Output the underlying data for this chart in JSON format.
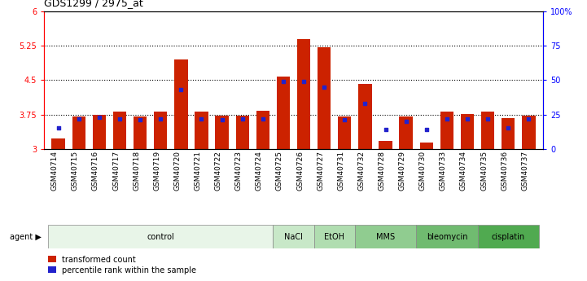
{
  "title": "GDS1299 / 2975_at",
  "samples": [
    "GSM40714",
    "GSM40715",
    "GSM40716",
    "GSM40717",
    "GSM40718",
    "GSM40719",
    "GSM40720",
    "GSM40721",
    "GSM40722",
    "GSM40723",
    "GSM40724",
    "GSM40725",
    "GSM40726",
    "GSM40727",
    "GSM40731",
    "GSM40732",
    "GSM40728",
    "GSM40729",
    "GSM40730",
    "GSM40733",
    "GSM40734",
    "GSM40735",
    "GSM40736",
    "GSM40737"
  ],
  "bar_heights": [
    3.23,
    3.7,
    3.75,
    3.82,
    3.7,
    3.82,
    4.95,
    3.82,
    3.72,
    3.72,
    3.83,
    4.57,
    5.4,
    5.22,
    3.7,
    4.42,
    3.18,
    3.7,
    3.14,
    3.82,
    3.76,
    3.82,
    3.68,
    3.72
  ],
  "percentile_values": [
    15,
    22,
    23,
    22,
    21,
    22,
    43,
    22,
    21,
    22,
    22,
    49,
    49,
    45,
    21,
    33,
    14,
    20,
    14,
    22,
    22,
    22,
    15,
    22
  ],
  "agents": [
    {
      "label": "control",
      "start": 0,
      "end": 10,
      "color": "#e8f5e8"
    },
    {
      "label": "NaCl",
      "start": 11,
      "end": 12,
      "color": "#c8e8c8"
    },
    {
      "label": "EtOH",
      "start": 13,
      "end": 14,
      "color": "#b0ddb0"
    },
    {
      "label": "MMS",
      "start": 15,
      "end": 17,
      "color": "#90cc90"
    },
    {
      "label": "bleomycin",
      "start": 18,
      "end": 20,
      "color": "#70bb70"
    },
    {
      "label": "cisplatin",
      "start": 21,
      "end": 23,
      "color": "#50aa50"
    }
  ],
  "ylim_left": [
    3.0,
    6.0
  ],
  "ylim_right": [
    0,
    100
  ],
  "yticks_left": [
    3.0,
    3.75,
    4.5,
    5.25,
    6.0
  ],
  "ytick_labels_left": [
    "3",
    "3.75",
    "4.5",
    "5.25",
    "6"
  ],
  "yticks_right": [
    0,
    25,
    50,
    75,
    100
  ],
  "ytick_labels_right": [
    "0",
    "25",
    "50",
    "75",
    "100%"
  ],
  "hlines": [
    3.75,
    4.5,
    5.25
  ],
  "bar_color": "#cc2200",
  "dot_color": "#2222cc",
  "bar_width": 0.65,
  "legend_labels": [
    "transformed count",
    "percentile rank within the sample"
  ],
  "legend_colors": [
    "#cc2200",
    "#2222cc"
  ],
  "agent_label": "agent"
}
